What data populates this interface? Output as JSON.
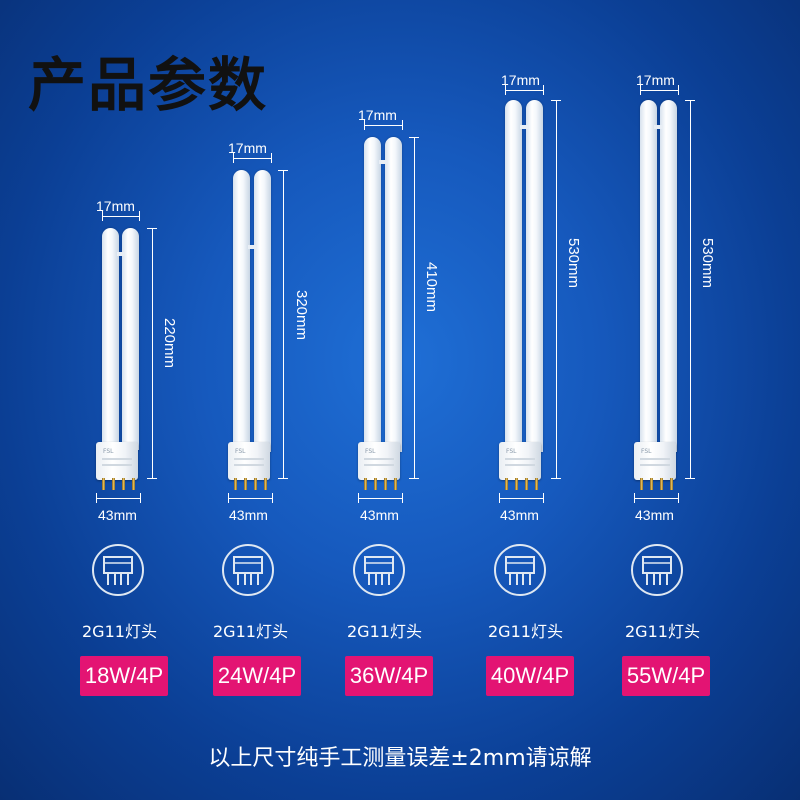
{
  "title": "产品参数",
  "note": "以上尺寸纯手工测量误差±2mm请谅解",
  "colors": {
    "badge": "#e31473",
    "background": "#1659bd"
  },
  "lamps": [
    {
      "width_label": "17mm",
      "base_label": "43mm",
      "length_label": "220mm",
      "socket_label": "2G11灯头",
      "spec": "18W/4P"
    },
    {
      "width_label": "17mm",
      "base_label": "43mm",
      "length_label": "320mm",
      "socket_label": "2G11灯头",
      "spec": "24W/4P"
    },
    {
      "width_label": "17mm",
      "base_label": "43mm",
      "length_label": "410mm",
      "socket_label": "2G11灯头",
      "spec": "36W/4P"
    },
    {
      "width_label": "17mm",
      "base_label": "43mm",
      "length_label": "530mm",
      "socket_label": "2G11灯头",
      "spec": "40W/4P"
    },
    {
      "width_label": "17mm",
      "base_label": "43mm",
      "length_label": "530mm",
      "socket_label": "2G11灯头",
      "spec": "55W/4P"
    }
  ],
  "base_print": "FSL"
}
